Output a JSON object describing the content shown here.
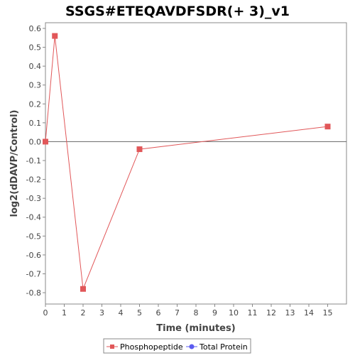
{
  "chart_data": {
    "type": "line",
    "title": "SSGS#ETEQAVDFSDR(+ 3)_v1",
    "xlabel": "Time (minutes)",
    "ylabel": "log2(dDAVP/Control)",
    "xlim": [
      0,
      16
    ],
    "ylim": [
      -0.86,
      0.63
    ],
    "x_ticks": [
      0,
      1,
      2,
      3,
      4,
      5,
      6,
      7,
      8,
      9,
      10,
      11,
      12,
      13,
      14,
      15
    ],
    "y_ticks": [
      0.6,
      0.5,
      0.4,
      0.3,
      0.2,
      0.1,
      0.0,
      -0.1,
      -0.2,
      -0.3,
      -0.4,
      -0.5,
      -0.6,
      -0.7,
      -0.8
    ],
    "x_tick_labels": [
      "0",
      "1",
      "2",
      "3",
      "4",
      "5",
      "6",
      "7",
      "8",
      "9",
      "10",
      "11",
      "12",
      "13",
      "14",
      "15"
    ],
    "y_tick_labels": [
      "0.6",
      "0.5",
      "0.4",
      "0.3",
      "0.2",
      "0.1",
      "0.0",
      "-0.1",
      "-0.2",
      "-0.3",
      "-0.4",
      "-0.5",
      "-0.6",
      "-0.7",
      "-0.8"
    ],
    "grid": false,
    "zero_line": true,
    "legend_position": "bottom-center",
    "series": [
      {
        "name": "Phosphopeptide",
        "color": "#e15759",
        "marker": "square",
        "x": [
          0,
          0.5,
          2,
          5,
          15
        ],
        "y": [
          0.0,
          0.56,
          -0.78,
          -0.04,
          0.08
        ]
      },
      {
        "name": "Total Protein",
        "color": "#5b5bf0",
        "marker": "circle",
        "x": [],
        "y": []
      }
    ]
  }
}
